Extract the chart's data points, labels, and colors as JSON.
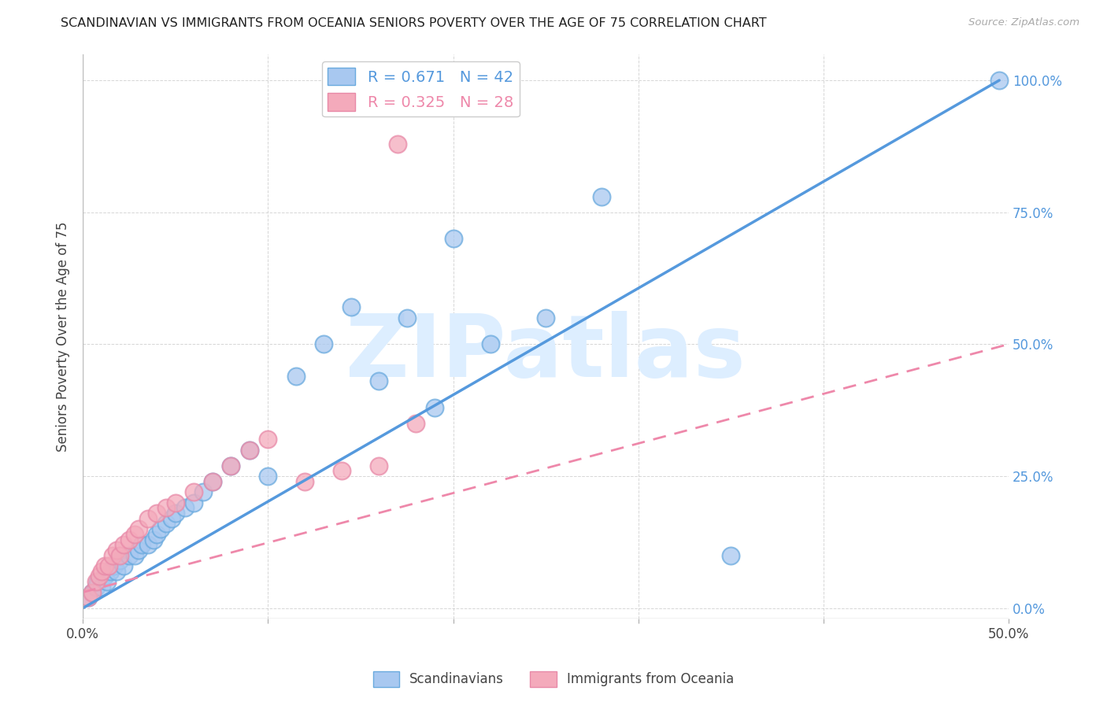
{
  "title": "SCANDINAVIAN VS IMMIGRANTS FROM OCEANIA SENIORS POVERTY OVER THE AGE OF 75 CORRELATION CHART",
  "source": "Source: ZipAtlas.com",
  "ylabel": "Seniors Poverty Over the Age of 75",
  "xlim": [
    0.0,
    0.5
  ],
  "ylim": [
    -0.02,
    1.05
  ],
  "xticks": [
    0.0,
    0.1,
    0.2,
    0.3,
    0.4,
    0.5
  ],
  "xticklabels": [
    "0.0%",
    "",
    "",
    "",
    "",
    "50.0%"
  ],
  "yticks_right": [
    0.0,
    0.25,
    0.5,
    0.75,
    1.0
  ],
  "ytick_right_labels": [
    "0.0%",
    "25.0%",
    "50.0%",
    "75.0%",
    "100.0%"
  ],
  "R_blue": 0.671,
  "N_blue": 42,
  "R_pink": 0.325,
  "N_pink": 28,
  "blue_fill": "#A8C8F0",
  "pink_fill": "#F4AABB",
  "blue_edge": "#6AAADE",
  "pink_edge": "#E88AA8",
  "blue_line": "#5599DD",
  "pink_line": "#EE88AA",
  "watermark": "ZIPatlas",
  "watermark_color": "#DDEEFF",
  "blue_scatter_x": [
    0.003,
    0.005,
    0.007,
    0.008,
    0.01,
    0.012,
    0.013,
    0.015,
    0.017,
    0.018,
    0.02,
    0.022,
    0.025,
    0.028,
    0.03,
    0.032,
    0.035,
    0.038,
    0.04,
    0.042,
    0.045,
    0.048,
    0.05,
    0.055,
    0.06,
    0.065,
    0.07,
    0.08,
    0.09,
    0.1,
    0.115,
    0.13,
    0.145,
    0.16,
    0.175,
    0.19,
    0.2,
    0.22,
    0.25,
    0.28,
    0.35,
    0.495
  ],
  "blue_scatter_y": [
    0.02,
    0.03,
    0.04,
    0.05,
    0.04,
    0.06,
    0.05,
    0.07,
    0.08,
    0.07,
    0.09,
    0.08,
    0.1,
    0.1,
    0.11,
    0.12,
    0.12,
    0.13,
    0.14,
    0.15,
    0.16,
    0.17,
    0.18,
    0.19,
    0.2,
    0.22,
    0.24,
    0.27,
    0.3,
    0.25,
    0.44,
    0.5,
    0.57,
    0.43,
    0.55,
    0.38,
    0.7,
    0.5,
    0.55,
    0.78,
    0.1,
    1.0
  ],
  "pink_scatter_x": [
    0.003,
    0.005,
    0.007,
    0.009,
    0.01,
    0.012,
    0.014,
    0.016,
    0.018,
    0.02,
    0.022,
    0.025,
    0.028,
    0.03,
    0.035,
    0.04,
    0.045,
    0.05,
    0.06,
    0.07,
    0.08,
    0.09,
    0.1,
    0.12,
    0.14,
    0.16,
    0.18,
    0.17
  ],
  "pink_scatter_y": [
    0.02,
    0.03,
    0.05,
    0.06,
    0.07,
    0.08,
    0.08,
    0.1,
    0.11,
    0.1,
    0.12,
    0.13,
    0.14,
    0.15,
    0.17,
    0.18,
    0.19,
    0.2,
    0.22,
    0.24,
    0.27,
    0.3,
    0.32,
    0.24,
    0.26,
    0.27,
    0.35,
    0.88
  ],
  "blue_line_x": [
    0.0,
    0.495
  ],
  "blue_line_y": [
    0.0,
    1.0
  ],
  "pink_line_x": [
    0.0,
    0.5
  ],
  "pink_line_y": [
    0.03,
    0.5
  ]
}
